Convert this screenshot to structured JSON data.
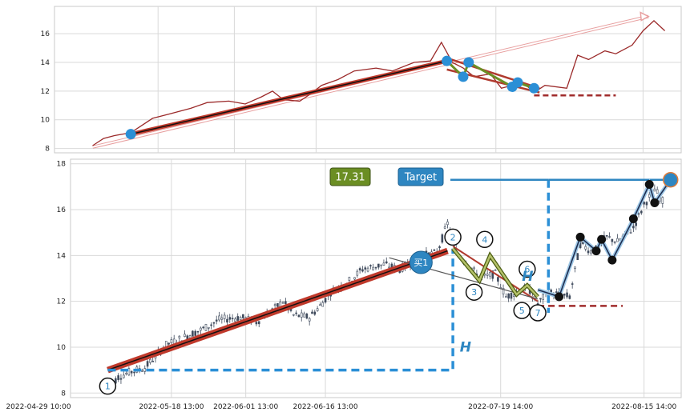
{
  "chart_data": [
    {
      "type": "line",
      "panel": "overview",
      "ylim": [
        7.7,
        17.9
      ],
      "y_ticks": [
        8,
        10,
        12,
        14,
        16
      ],
      "grid": true,
      "x_range": [
        "2022-04-29",
        "2022-08-22"
      ],
      "colors": {
        "price": "#9b2a2a",
        "trend": "#c0392b",
        "marker": "#2b8fd6",
        "target_arrow": "#e8a0a0"
      },
      "price_series": [
        [
          "2022-05-06",
          8.2
        ],
        [
          "2022-05-08",
          8.7
        ],
        [
          "2022-05-10",
          8.9
        ],
        [
          "2022-05-13",
          9.1
        ],
        [
          "2022-05-17",
          10.1
        ],
        [
          "2022-05-20",
          10.4
        ],
        [
          "2022-05-24",
          10.8
        ],
        [
          "2022-05-27",
          11.2
        ],
        [
          "2022-05-31",
          11.3
        ],
        [
          "2022-06-03",
          11.1
        ],
        [
          "2022-06-06",
          11.6
        ],
        [
          "2022-06-08",
          12.0
        ],
        [
          "2022-06-10",
          11.4
        ],
        [
          "2022-06-13",
          11.3
        ],
        [
          "2022-06-15",
          11.8
        ],
        [
          "2022-06-17",
          12.4
        ],
        [
          "2022-06-20",
          12.8
        ],
        [
          "2022-06-23",
          13.4
        ],
        [
          "2022-06-27",
          13.6
        ],
        [
          "2022-06-30",
          13.4
        ],
        [
          "2022-07-04",
          14.0
        ],
        [
          "2022-07-07",
          14.1
        ],
        [
          "2022-07-09",
          15.4
        ],
        [
          "2022-07-11",
          14.0
        ],
        [
          "2022-07-13",
          13.6
        ],
        [
          "2022-07-15",
          13.0
        ],
        [
          "2022-07-18",
          13.2
        ],
        [
          "2022-07-20",
          12.2
        ],
        [
          "2022-07-22",
          12.4
        ],
        [
          "2022-07-24",
          12.6
        ],
        [
          "2022-07-26",
          11.9
        ],
        [
          "2022-07-28",
          12.4
        ],
        [
          "2022-08-01",
          12.2
        ],
        [
          "2022-08-03",
          14.5
        ],
        [
          "2022-08-05",
          14.2
        ],
        [
          "2022-08-08",
          14.8
        ],
        [
          "2022-08-10",
          14.6
        ],
        [
          "2022-08-13",
          15.2
        ],
        [
          "2022-08-15",
          16.2
        ],
        [
          "2022-08-17",
          16.9
        ],
        [
          "2022-08-19",
          16.2
        ]
      ],
      "trend_line": [
        [
          "2022-05-13",
          9.0
        ],
        [
          "2022-07-10",
          14.1
        ]
      ],
      "target_arrow": [
        [
          "2022-05-06",
          8.1
        ],
        [
          "2022-08-16",
          17.2
        ]
      ],
      "triangle_upper": [
        [
          "2022-07-10",
          14.3
        ],
        [
          "2022-07-27",
          12.2
        ]
      ],
      "triangle_lower": [
        [
          "2022-07-10",
          13.5
        ],
        [
          "2022-07-27",
          11.9
        ]
      ],
      "dashed_level": [
        [
          "2022-07-26",
          11.7
        ],
        [
          "2022-08-10",
          11.7
        ]
      ],
      "markers": [
        [
          "2022-05-13",
          9.0
        ],
        [
          "2022-07-10",
          14.1
        ],
        [
          "2022-07-13",
          13.0
        ],
        [
          "2022-07-14",
          14.0
        ],
        [
          "2022-07-22",
          12.3
        ],
        [
          "2022-07-23",
          12.6
        ],
        [
          "2022-07-26",
          12.2
        ]
      ]
    },
    {
      "type": "candlestick",
      "panel": "pattern",
      "ylim": [
        7.8,
        18.2
      ],
      "y_ticks": [
        8,
        10,
        12,
        14,
        16,
        18
      ],
      "grid": true,
      "x_range": [
        "2022-04-29",
        "2022-08-22"
      ],
      "x_tick_labels": [
        "2022-04-29 10:00",
        "2022-05-18 13:00",
        "2022-06-01 13:00",
        "2022-06-16 13:00",
        "2022-07-19 14:00",
        "2022-08-15 14:00"
      ],
      "colors": {
        "candle": "#3f4a5c",
        "trend": "#c0392b",
        "dash": "#2b8fd6",
        "triangle": "#6b8e23",
        "neckline": "#a02c2c",
        "price_box": "#6b8e23",
        "target_box": "#2e86c1"
      },
      "trend_line": [
        [
          "2022-05-06",
          9.0
        ],
        [
          "2022-07-09",
          14.2
        ]
      ],
      "height_dash": {
        "from": [
          "2022-05-06",
          9.0
        ],
        "corner": [
          "2022-07-10",
          9.0
        ],
        "to": [
          "2022-07-10",
          14.3
        ]
      },
      "target_dash": {
        "vertical": [
          "2022-07-28",
          17.3,
          11.5
        ],
        "horizontal": [
          "2022-07-28",
          "2022-08-20",
          17.3
        ]
      },
      "triangle_upper": [
        [
          "2022-07-10",
          14.4
        ],
        [
          "2022-07-26",
          12.0
        ]
      ],
      "triangle_lower": [
        [
          "2022-06-28",
          13.9
        ],
        [
          "2022-07-26",
          12.1
        ]
      ],
      "zigzag": [
        [
          "2022-07-10",
          14.3
        ],
        [
          "2022-07-15",
          12.9
        ],
        [
          "2022-07-17",
          14.0
        ],
        [
          "2022-07-22",
          12.3
        ],
        [
          "2022-07-24",
          12.7
        ],
        [
          "2022-07-26",
          12.2
        ]
      ],
      "neckline": [
        [
          "2022-07-26",
          11.8
        ],
        [
          "2022-08-11",
          11.8
        ]
      ],
      "breakout_path": [
        [
          "2022-07-26",
          12.5
        ],
        [
          "2022-07-30",
          12.2
        ],
        [
          "2022-08-03",
          14.8
        ],
        [
          "2022-08-06",
          14.2
        ],
        [
          "2022-08-07",
          14.7
        ],
        [
          "2022-08-09",
          13.8
        ],
        [
          "2022-08-13",
          15.6
        ],
        [
          "2022-08-16",
          17.1
        ],
        [
          "2022-08-17",
          16.3
        ],
        [
          "2022-08-20",
          17.3
        ]
      ],
      "point_labels": [
        {
          "label": "1",
          "x": "2022-05-06",
          "y": 8.3
        },
        {
          "label": "2",
          "x": "2022-07-10",
          "y": 14.8
        },
        {
          "label": "3",
          "x": "2022-07-14",
          "y": 12.4
        },
        {
          "label": "4",
          "x": "2022-07-16",
          "y": 14.7
        },
        {
          "label": "6",
          "x": "2022-07-24",
          "y": 13.4
        },
        {
          "label": "5",
          "x": "2022-07-23",
          "y": 11.6
        },
        {
          "label": "7",
          "x": "2022-07-26",
          "y": 11.5
        }
      ],
      "annotations": {
        "height_label": "H",
        "buy_label": "买1",
        "price_label": "17.31",
        "target_label": "Target"
      }
    }
  ]
}
